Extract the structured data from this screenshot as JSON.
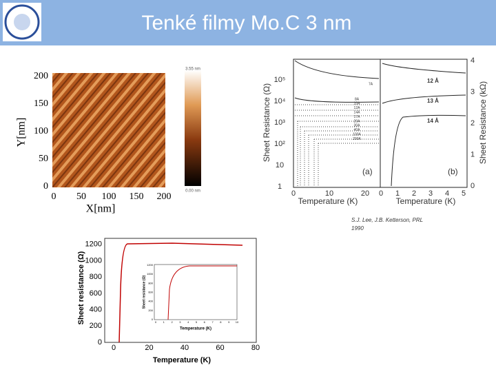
{
  "header": {
    "title": "Tenké filmy Mo.C 3 nm"
  },
  "afm": {
    "y_label": "Y[nm]",
    "x_label": "X[nm]",
    "yticks": [
      "0",
      "50",
      "100",
      "150",
      "200"
    ],
    "xticks": [
      "0",
      "50",
      "100",
      "150",
      "200"
    ],
    "colorbar_top": "3.55 nm",
    "colorbar_bottom": "0.00 nm"
  },
  "scan": {
    "left_label": "Sheet Resistance (Ω)",
    "right_label": "Sheet Resistance (kΩ)",
    "x_label_a": "Temperature (K)",
    "x_label_b": "Temperature (K)",
    "panel_a": "(a)",
    "panel_b": "(b)",
    "left_ticks": [
      "10⁵",
      "10⁴",
      "10³",
      "10²",
      "10",
      "1"
    ],
    "right_ticks": [
      "4",
      "3",
      "2",
      "1",
      "0"
    ],
    "xticks_a": [
      "0",
      "10",
      "20"
    ],
    "xticks_b": [
      "0",
      "1",
      "2",
      "3",
      "4",
      "5"
    ],
    "curves_a": [
      "7A",
      "8A",
      "10A",
      "12A",
      "14A",
      "17A",
      "20A",
      "30A",
      "40A",
      "100A",
      "200A"
    ],
    "curves_b": [
      "12 Å",
      "13 Å",
      "14 Å"
    ]
  },
  "citation": {
    "line1": "S.J. Lee, J.B. Ketterson, PRL",
    "line2": "1990"
  },
  "plot": {
    "y_label": "Sheet resistance (Ω)",
    "x_label": "Temperature (K)",
    "yticks": [
      "0",
      "200",
      "400",
      "600",
      "800",
      "1000",
      "1200"
    ],
    "xticks": [
      "0",
      "20",
      "40",
      "60",
      "80"
    ],
    "inset_y_label": "Sheet resistance (Ω)",
    "inset_x_label": "Temperature (K)",
    "inset_yticks": [
      "0",
      "200",
      "400",
      "600",
      "800",
      "1000",
      "1200"
    ],
    "inset_xticks": [
      "0",
      "1",
      "2",
      "3",
      "4",
      "5",
      "6",
      "7",
      "8",
      "9",
      "10"
    ]
  }
}
